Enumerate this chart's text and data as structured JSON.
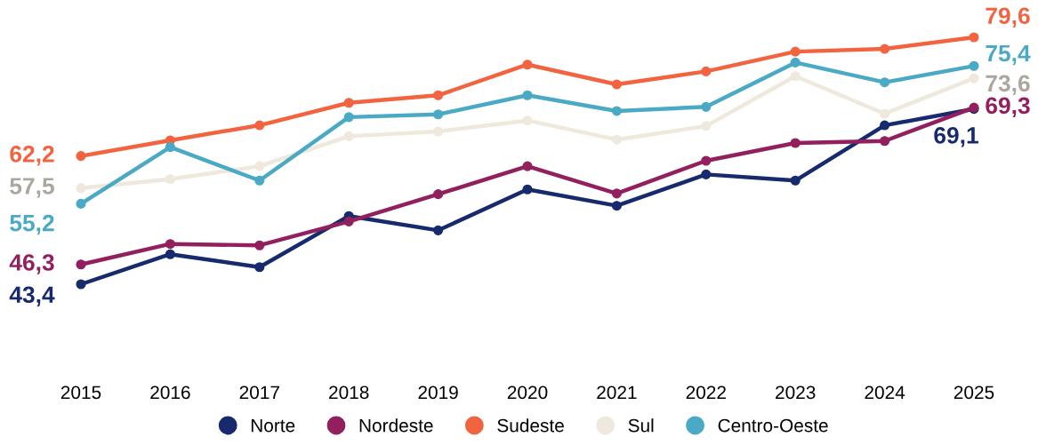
{
  "chart_data": {
    "type": "line",
    "categories": [
      "2015",
      "2016",
      "2017",
      "2018",
      "2019",
      "2020",
      "2021",
      "2022",
      "2023",
      "2024",
      "2025"
    ],
    "series": [
      {
        "name": "Norte",
        "color": "#172a6e",
        "values": [
          43.4,
          47.8,
          45.9,
          53.4,
          51.3,
          57.3,
          54.9,
          59.5,
          58.6,
          66.7,
          69.1
        ],
        "value_labels": [
          "43,4",
          null,
          null,
          null,
          null,
          null,
          null,
          null,
          null,
          null,
          "69,1"
        ]
      },
      {
        "name": "Nordeste",
        "color": "#92205f",
        "values": [
          46.3,
          49.3,
          49.1,
          52.6,
          56.6,
          60.7,
          56.7,
          61.5,
          64.1,
          64.4,
          69.3
        ],
        "value_labels": [
          "46,3",
          null,
          null,
          null,
          null,
          null,
          null,
          null,
          null,
          null,
          "69,3"
        ]
      },
      {
        "name": "Sudeste",
        "color": "#f26440",
        "values": [
          62.2,
          64.5,
          66.7,
          70.0,
          71.1,
          75.6,
          72.7,
          74.6,
          77.5,
          77.9,
          79.6
        ],
        "value_labels": [
          "62,2",
          null,
          null,
          null,
          null,
          null,
          null,
          null,
          null,
          null,
          "79,6"
        ]
      },
      {
        "name": "Sul",
        "color": "#efe8dc",
        "values": [
          57.5,
          58.8,
          60.7,
          65.1,
          65.8,
          67.4,
          64.6,
          66.6,
          73.9,
          68.4,
          73.6
        ],
        "value_labels": [
          "57,5",
          null,
          null,
          null,
          null,
          null,
          null,
          null,
          null,
          null,
          "73,6"
        ]
      },
      {
        "name": "Centro-Oeste",
        "color": "#4aaac6",
        "values": [
          55.2,
          63.5,
          58.6,
          67.9,
          68.3,
          71.1,
          68.8,
          69.4,
          75.9,
          73.0,
          75.4
        ],
        "value_labels": [
          "55,2",
          null,
          null,
          null,
          null,
          null,
          null,
          null,
          null,
          null,
          "75,4"
        ]
      }
    ],
    "tick_labels": "x",
    "grid": false,
    "legend": "bottom",
    "marker": "circle",
    "line_style": "solid"
  }
}
